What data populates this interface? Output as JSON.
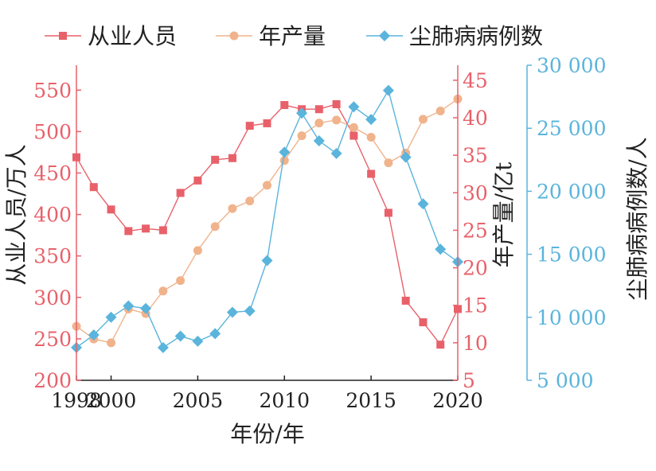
{
  "chart_data": {
    "type": "line",
    "x": [
      1998,
      1999,
      2000,
      2001,
      2002,
      2003,
      2004,
      2005,
      2006,
      2007,
      2008,
      2009,
      2010,
      2011,
      2012,
      2013,
      2014,
      2015,
      2016,
      2017,
      2018,
      2019,
      2020
    ],
    "x_ticks": [
      "1998",
      "2000",
      "2005",
      "2010",
      "2015",
      "2020"
    ],
    "x_tick_values": [
      1998,
      2000,
      2005,
      2010,
      2015,
      2020
    ],
    "xlim": [
      1998,
      2020
    ],
    "xlabel": "年份/年",
    "axes": {
      "left": {
        "label": "从业人员/万人",
        "ylim": [
          200,
          580
        ],
        "ticks": [
          200,
          250,
          300,
          350,
          400,
          450,
          500,
          550
        ],
        "tick_labels": [
          "200",
          "250",
          "300",
          "350",
          "400",
          "450",
          "500",
          "550"
        ],
        "color": "#e8616a"
      },
      "right1": {
        "label": "年产量/亿t",
        "ylim": [
          5,
          47
        ],
        "ticks": [
          5,
          10,
          15,
          20,
          25,
          30,
          35,
          40,
          45
        ],
        "tick_labels": [
          "5",
          "10",
          "15",
          "20",
          "25",
          "30",
          "35",
          "40",
          "45"
        ],
        "color": "#e8616a"
      },
      "right2": {
        "label": "尘肺病病例数/人",
        "ylim": [
          5000,
          30000
        ],
        "ticks": [
          5000,
          10000,
          15000,
          20000,
          25000,
          30000
        ],
        "tick_labels": [
          "5 000",
          "10 000",
          "15 000",
          "20 000",
          "25 000",
          "30 000"
        ],
        "color": "#5ab4dc"
      }
    },
    "series": [
      {
        "name": "从业人员",
        "axis": "left",
        "color": "#e8616a",
        "marker": "square",
        "values": [
          469,
          433,
          406,
          380,
          383,
          381,
          426,
          441,
          466,
          468,
          507,
          510,
          532,
          527,
          527,
          533,
          495,
          449,
          402,
          296,
          270,
          243,
          286
        ]
      },
      {
        "name": "年产量",
        "axis": "right1",
        "color": "#f0b38c",
        "marker": "circle",
        "values": [
          12.2,
          10.5,
          10.0,
          14.5,
          13.9,
          16.9,
          18.3,
          22.3,
          25.5,
          27.9,
          28.9,
          31.0,
          34.3,
          37.6,
          39.3,
          39.7,
          38.7,
          37.4,
          34.0,
          35.3,
          39.8,
          40.9,
          42.5
        ]
      },
      {
        "name": "尘肺病病例数",
        "axis": "right2",
        "color": "#5ab4dc",
        "marker": "diamond",
        "values": [
          7600,
          8600,
          10000,
          10900,
          10700,
          7600,
          8500,
          8100,
          8700,
          10400,
          10500,
          14500,
          23100,
          26200,
          24000,
          23000,
          26700,
          25700,
          28000,
          22700,
          19000,
          15400,
          14400
        ]
      }
    ],
    "legend": "top"
  }
}
